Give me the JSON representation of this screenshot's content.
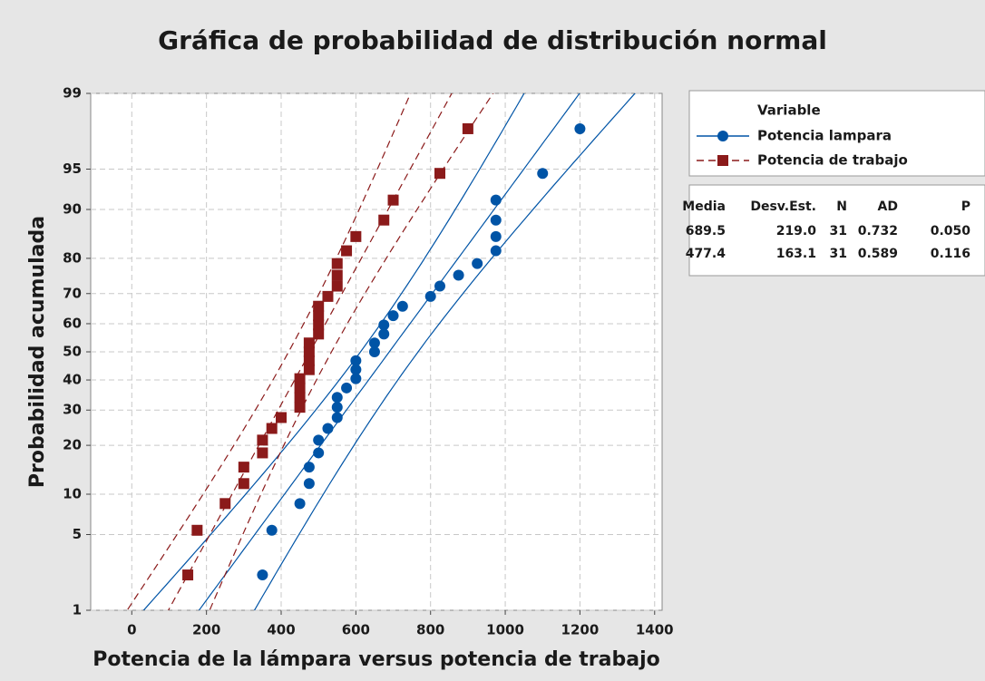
{
  "chart_data": {
    "type": "probability",
    "title": "Gráfica de probabilidad de distribución normal",
    "xlabel": "Potencia de la lámpara versus potencia de trabajo",
    "ylabel": "Probabilidad acumulada",
    "xlim": [
      -110,
      1420
    ],
    "xticks": [
      0,
      200,
      400,
      600,
      800,
      1000,
      1200,
      1400
    ],
    "ylim": [
      1,
      99
    ],
    "yticks": [
      1,
      5,
      10,
      20,
      30,
      40,
      50,
      60,
      70,
      80,
      90,
      95,
      99
    ],
    "yscale": "normal-probability",
    "grid": true,
    "legend_title": "Variable",
    "series": [
      {
        "name": "Potencia lampara",
        "color": "#0054a6",
        "marker": "circle",
        "line": "solid",
        "x": [
          350,
          375,
          450,
          475,
          475,
          500,
          500,
          525,
          550,
          550,
          550,
          575,
          600,
          600,
          600,
          650,
          650,
          675,
          675,
          700,
          725,
          800,
          825,
          875,
          925,
          975,
          975,
          975,
          975,
          1100,
          1200
        ],
        "values": [
          2.23,
          5.41,
          8.6,
          11.78,
          14.97,
          18.15,
          21.34,
          24.52,
          27.71,
          30.89,
          34.08,
          37.26,
          40.45,
          43.63,
          46.82,
          50,
          53.18,
          56.37,
          59.55,
          62.74,
          65.92,
          69.11,
          72.29,
          75.48,
          78.66,
          81.85,
          85.03,
          88.22,
          91.4,
          94.59,
          97.77
        ]
      },
      {
        "name": "Potencia de trabajo",
        "color": "#8b1a1a",
        "marker": "square",
        "line": "dashed",
        "x": [
          150,
          175,
          250,
          300,
          300,
          350,
          350,
          375,
          400,
          450,
          450,
          450,
          450,
          475,
          475,
          475,
          475,
          500,
          500,
          500,
          500,
          525,
          550,
          550,
          550,
          575,
          600,
          675,
          700,
          825,
          900
        ],
        "values": [
          2.23,
          5.41,
          8.6,
          11.78,
          14.97,
          18.15,
          21.34,
          24.52,
          27.71,
          30.89,
          34.08,
          37.26,
          40.45,
          43.63,
          46.82,
          50,
          53.18,
          56.37,
          59.55,
          62.74,
          65.92,
          69.11,
          72.29,
          75.48,
          78.66,
          81.85,
          85.03,
          88.22,
          91.4,
          94.59,
          97.77
        ]
      }
    ],
    "stats_table": {
      "header": [
        "Media",
        "Desv.Est.",
        "N",
        "AD",
        "P"
      ],
      "rows": [
        [
          "689.5",
          "219.0",
          "31",
          "0.732",
          "0.050"
        ],
        [
          "477.4",
          "163.1",
          "31",
          "0.589",
          "0.116"
        ]
      ]
    }
  }
}
